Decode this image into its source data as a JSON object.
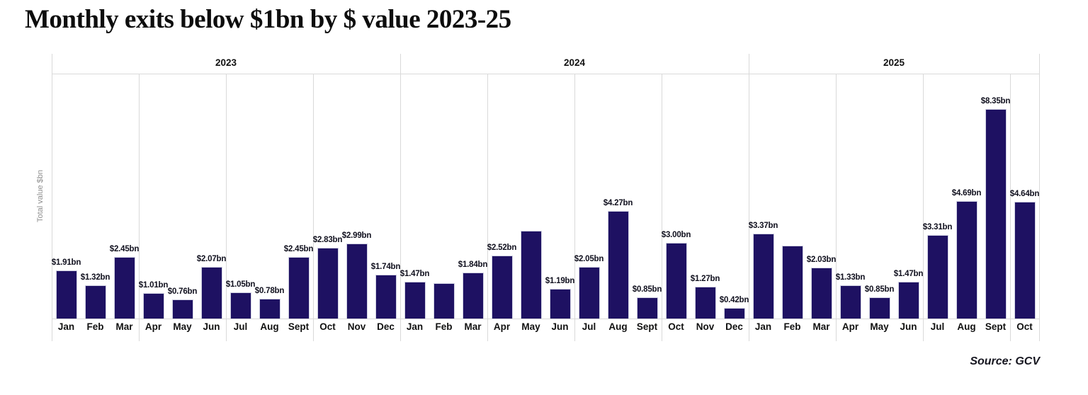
{
  "page": {
    "title": "Monthly exits below $1bn by $ value 2023-25",
    "source": "Source: GCV"
  },
  "chart_data": {
    "type": "bar",
    "title": "Monthly exits below $1bn by $ value 2023-25",
    "xlabel": "",
    "ylabel": "Total value $bn",
    "unit": "$bn",
    "ylim": [
      0,
      9.75
    ],
    "legend": "none",
    "grid": "quarter-and-year vertical separators, top header line, baseline",
    "bar_color": "#1e1162",
    "gridline_color": "#d9d9d9",
    "value_label_color": "#10101e",
    "groups": [
      {
        "year": "2023",
        "bars": [
          {
            "month": "Jan",
            "value": 1.91,
            "label": "$1.91bn"
          },
          {
            "month": "Feb",
            "value": 1.32,
            "label": "$1.32bn"
          },
          {
            "month": "Mar",
            "value": 2.45,
            "label": "$2.45bn"
          },
          {
            "month": "Apr",
            "value": 1.01,
            "label": "$1.01bn"
          },
          {
            "month": "May",
            "value": 0.76,
            "label": "$0.76bn"
          },
          {
            "month": "Jun",
            "value": 2.07,
            "label": "$2.07bn"
          },
          {
            "month": "Jul",
            "value": 1.05,
            "label": "$1.05bn"
          },
          {
            "month": "Aug",
            "value": 0.78,
            "label": "$0.78bn"
          },
          {
            "month": "Sept",
            "value": 2.45,
            "label": "$2.45bn"
          },
          {
            "month": "Oct",
            "value": 2.83,
            "label": "$2.83bn"
          },
          {
            "month": "Nov",
            "value": 2.99,
            "label": "$2.99bn"
          },
          {
            "month": "Dec",
            "value": 1.74,
            "label": "$1.74bn"
          }
        ]
      },
      {
        "year": "2024",
        "bars": [
          {
            "month": "Jan",
            "value": 1.47,
            "label": "$1.47bn"
          },
          {
            "month": "Feb",
            "value": 1.4,
            "label": ""
          },
          {
            "month": "Mar",
            "value": 1.84,
            "label": "$1.84bn"
          },
          {
            "month": "Apr",
            "value": 2.52,
            "label": "$2.52bn"
          },
          {
            "month": "May",
            "value": 3.5,
            "label": ""
          },
          {
            "month": "Jun",
            "value": 1.19,
            "label": "$1.19bn"
          },
          {
            "month": "Jul",
            "value": 2.05,
            "label": "$2.05bn"
          },
          {
            "month": "Aug",
            "value": 4.27,
            "label": "$4.27bn"
          },
          {
            "month": "Sept",
            "value": 0.85,
            "label": "$0.85bn"
          },
          {
            "month": "Oct",
            "value": 3.0,
            "label": "$3.00bn"
          },
          {
            "month": "Nov",
            "value": 1.27,
            "label": "$1.27bn"
          },
          {
            "month": "Dec",
            "value": 0.42,
            "label": "$0.42bn"
          }
        ]
      },
      {
        "year": "2025",
        "bars": [
          {
            "month": "Jan",
            "value": 3.37,
            "label": "$3.37bn"
          },
          {
            "month": "Feb",
            "value": 2.9,
            "label": ""
          },
          {
            "month": "Mar",
            "value": 2.03,
            "label": "$2.03bn"
          },
          {
            "month": "Apr",
            "value": 1.33,
            "label": "$1.33bn"
          },
          {
            "month": "May",
            "value": 0.85,
            "label": "$0.85bn"
          },
          {
            "month": "Jun",
            "value": 1.47,
            "label": "$1.47bn"
          },
          {
            "month": "Jul",
            "value": 3.31,
            "label": "$3.31bn"
          },
          {
            "month": "Aug",
            "value": 4.69,
            "label": "$4.69bn"
          },
          {
            "month": "Sept",
            "value": 8.35,
            "label": "$8.35bn"
          },
          {
            "month": "Oct",
            "value": 4.64,
            "label": "$4.64bn"
          }
        ]
      }
    ]
  }
}
